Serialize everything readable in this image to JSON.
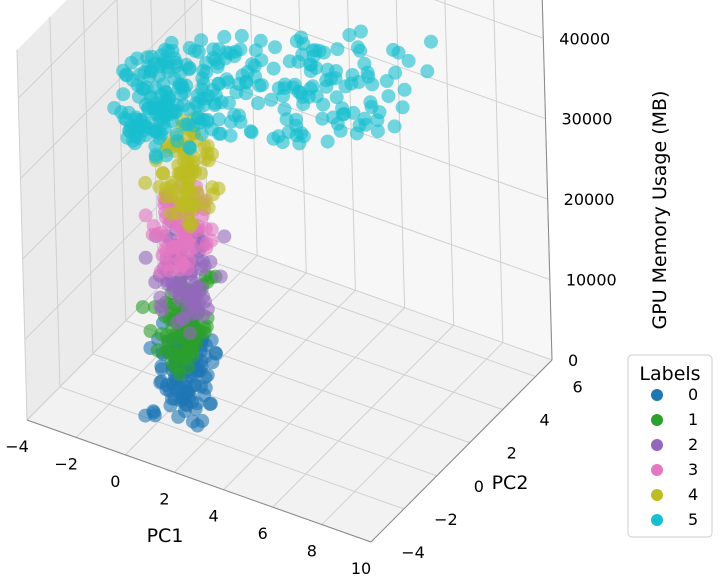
{
  "chart_data": {
    "type": "scatter",
    "projection": "3d",
    "title": "",
    "xlabel": "PC1",
    "ylabel": "PC2",
    "zlabel": "GPU Memory Usage (MB)",
    "xlim": [
      -4,
      10
    ],
    "ylim": [
      -4,
      7
    ],
    "zlim": [
      0,
      46000
    ],
    "x_ticks": [
      "−4",
      "−2",
      "0",
      "2",
      "4",
      "6",
      "8",
      "10"
    ],
    "y_ticks": [
      "−4",
      "−2",
      "0",
      "2",
      "4",
      "6"
    ],
    "z_ticks": [
      "0",
      "10000",
      "20000",
      "30000",
      "40000"
    ],
    "x_tick_values": [
      -4,
      -2,
      0,
      2,
      4,
      6,
      8,
      10
    ],
    "y_tick_values": [
      -4,
      -2,
      0,
      2,
      4,
      6
    ],
    "z_tick_values": [
      0,
      10000,
      20000,
      30000,
      40000
    ],
    "grid": true,
    "legend": {
      "title": "Labels",
      "position": "right",
      "entries": [
        "0",
        "1",
        "2",
        "3",
        "4",
        "5"
      ]
    },
    "series": [
      {
        "name": "0",
        "color": "#1f77b4",
        "z_range": [
          0,
          9000
        ]
      },
      {
        "name": "1",
        "color": "#2ca02c",
        "z_range": [
          6000,
          16000
        ]
      },
      {
        "name": "2",
        "color": "#9467bd",
        "z_range": [
          13000,
          23000
        ]
      },
      {
        "name": "3",
        "color": "#e377c2",
        "z_range": [
          19000,
          28000
        ]
      },
      {
        "name": "4",
        "color": "#bcbd22",
        "z_range": [
          25000,
          35000
        ]
      },
      {
        "name": "5",
        "color": "#17becf",
        "z_range": [
          33000,
          45000
        ]
      }
    ]
  }
}
